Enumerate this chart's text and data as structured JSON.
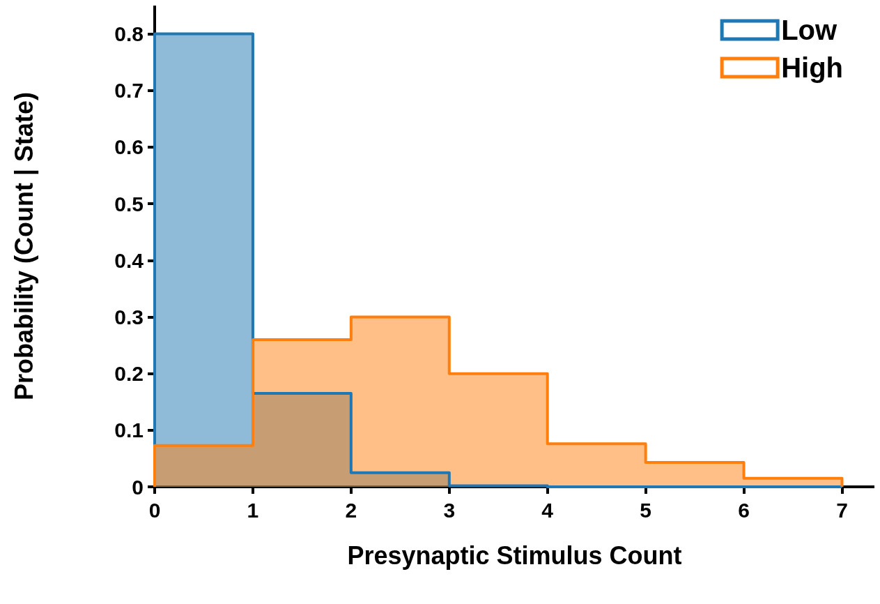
{
  "chart_data": {
    "type": "histogram",
    "xlabel": "Presynaptic Stimulus Count",
    "ylabel": "Probability (Count | State)",
    "bins": [
      0,
      1,
      2,
      3,
      4,
      5,
      6,
      7
    ],
    "series": [
      {
        "name": "Low",
        "color": "#1f77b4",
        "values": [
          0.8,
          0.165,
          0.025,
          0.002,
          0,
          0,
          0
        ]
      },
      {
        "name": "High",
        "color": "#ff7f0e",
        "values": [
          0.073,
          0.26,
          0.3,
          0.2,
          0.076,
          0.043,
          0.015
        ]
      }
    ],
    "xlim": [
      0,
      7.33
    ],
    "xticks": [
      0,
      1,
      2,
      3,
      4,
      5,
      6,
      7
    ],
    "ylim": [
      0,
      0.85
    ],
    "yticks": [
      0,
      0.1,
      0.2,
      0.3,
      0.4,
      0.5,
      0.6,
      0.7,
      0.8
    ],
    "grid": false,
    "legend": "top right"
  }
}
